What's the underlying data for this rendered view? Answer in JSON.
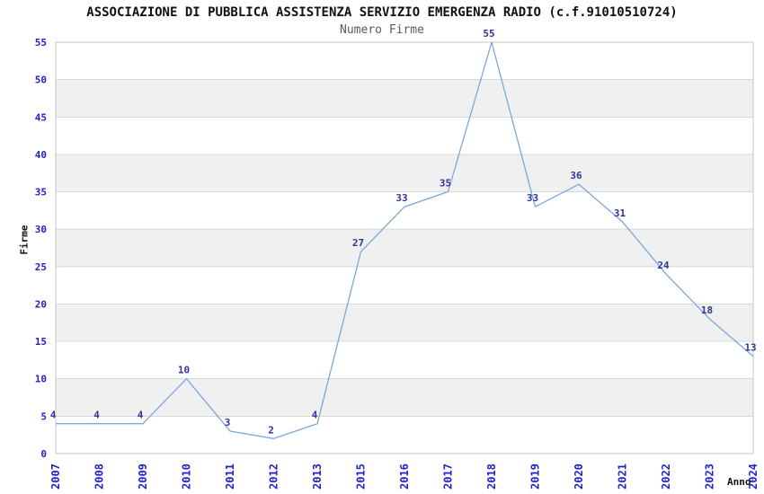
{
  "header": {
    "title": "ASSOCIAZIONE DI PUBBLICA ASSISTENZA SERVIZIO EMERGENZA RADIO (c.f.91010510724)",
    "subtitle": "Numero Firme"
  },
  "chart_data": {
    "type": "line",
    "title": "Numero Firme",
    "xlabel": "Anno",
    "ylabel": "Firme",
    "categories": [
      "2007",
      "2008",
      "2009",
      "2010",
      "2011",
      "2012",
      "2013",
      "2015",
      "2016",
      "2017",
      "2018",
      "2019",
      "2020",
      "2021",
      "2022",
      "2023",
      "2024"
    ],
    "values": [
      4,
      4,
      4,
      10,
      3,
      2,
      4,
      27,
      33,
      35,
      55,
      33,
      36,
      31,
      24,
      18,
      13
    ],
    "ylim": [
      0,
      55
    ],
    "yticks": [
      0,
      5,
      10,
      15,
      20,
      25,
      30,
      35,
      40,
      45,
      50,
      55
    ],
    "grid": "horizontal-bands-every-5",
    "legend": "none",
    "colors": {
      "line": "#7aa8da",
      "point_label": "#333399",
      "tick_label": "#2222cc",
      "band": "#f0f0f0",
      "gridline": "#d8d8d8",
      "border": "#c6c6c6",
      "title": "#111111",
      "subtitle": "#5a5a5a"
    }
  }
}
